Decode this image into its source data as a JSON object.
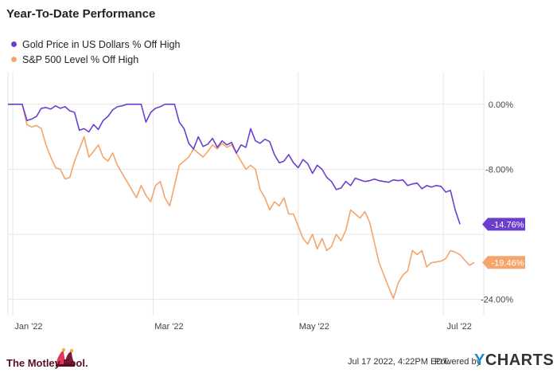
{
  "chart_data": {
    "type": "line",
    "title": "Year-To-Date Performance",
    "ylim": [
      -26,
      4
    ],
    "yticks": [
      {
        "value": 0,
        "label": "0.00%"
      },
      {
        "value": -8,
        "label": "-8.00%"
      },
      {
        "value": -24,
        "label": "-24.00%"
      }
    ],
    "xlim": [
      0,
      200
    ],
    "xticks": [
      {
        "value": 0,
        "label": "Jan '22"
      },
      {
        "value": 59,
        "label": "Mar '22"
      },
      {
        "value": 120,
        "label": "May '22"
      },
      {
        "value": 181,
        "label": "Jul '22"
      }
    ],
    "grid": true,
    "legend_position": "top-left",
    "series": [
      {
        "name": "Gold Price in US Dollars % Off High",
        "color": "#6a3fd0",
        "end_label": "-14.76%",
        "x": [
          0,
          2,
          4,
          6,
          8,
          10,
          12,
          14,
          16,
          18,
          20,
          22,
          24,
          26,
          28,
          30,
          32,
          34,
          36,
          38,
          40,
          42,
          44,
          46,
          48,
          50,
          52,
          54,
          56,
          58,
          60,
          62,
          64,
          66,
          68,
          70,
          72,
          74,
          76,
          78,
          80,
          82,
          84,
          86,
          88,
          90,
          92,
          94,
          96,
          98,
          100,
          102,
          104,
          106,
          108,
          110,
          112,
          114,
          116,
          118,
          120,
          122,
          124,
          126,
          128,
          130,
          132,
          134,
          136,
          138,
          140,
          142,
          144,
          146,
          148,
          150,
          152,
          154,
          156,
          158,
          160,
          162,
          164,
          166,
          168,
          170,
          172,
          174,
          176,
          178,
          180,
          182,
          184,
          186,
          188,
          190
        ],
        "y": [
          0,
          0,
          0,
          0,
          -2.0,
          -1.8,
          -1.5,
          -0.5,
          -0.4,
          -0.6,
          -0.2,
          -0.5,
          -0.3,
          -0.8,
          -1.0,
          -3.2,
          -3.0,
          -3.4,
          -2.5,
          -3.1,
          -2.0,
          -1.5,
          -0.7,
          -0.3,
          -0.2,
          0,
          0,
          0,
          0,
          -2.2,
          -1.0,
          -0.5,
          -0.3,
          0,
          0,
          0,
          -2.2,
          -3.0,
          -4.8,
          -5.5,
          -4.0,
          -5.2,
          -4.9,
          -4.2,
          -5.3,
          -4.5,
          -5.0,
          -4.7,
          -6.0,
          -5.0,
          -5.3,
          -3.0,
          -4.5,
          -4.8,
          -4.3,
          -4.6,
          -6.2,
          -7.2,
          -7.0,
          -6.2,
          -7.2,
          -7.8,
          -6.8,
          -7.3,
          -8.5,
          -7.5,
          -8.0,
          -9.0,
          -9.5,
          -10.5,
          -10.3,
          -9.5,
          -10.0,
          -9.1,
          -9.3,
          -9.5,
          -9.4,
          -9.2,
          -9.4,
          -9.5,
          -9.6,
          -9.3,
          -9.4,
          -9.3,
          -10.0,
          -9.8,
          -9.7,
          -10.4,
          -10.0,
          -10.2,
          -10.0,
          -10.1,
          -10.8,
          -10.6,
          -13.0,
          -14.76
        ]
      },
      {
        "name": "S&P 500 Level % Off High",
        "color": "#f5a46a",
        "end_label": "-19.46%",
        "x": [
          0,
          2,
          4,
          6,
          8,
          10,
          12,
          14,
          16,
          18,
          20,
          22,
          24,
          26,
          28,
          30,
          32,
          34,
          36,
          38,
          40,
          42,
          44,
          46,
          48,
          50,
          52,
          54,
          56,
          58,
          60,
          62,
          64,
          66,
          68,
          70,
          72,
          74,
          76,
          78,
          80,
          82,
          84,
          86,
          88,
          90,
          92,
          94,
          96,
          98,
          100,
          102,
          104,
          106,
          108,
          110,
          112,
          114,
          116,
          118,
          120,
          122,
          124,
          126,
          128,
          130,
          132,
          134,
          136,
          138,
          140,
          142,
          144,
          146,
          148,
          150,
          152,
          154,
          156,
          158,
          160,
          162,
          164,
          166,
          168,
          170,
          172,
          174,
          176,
          178,
          180,
          182,
          184,
          186,
          188,
          190,
          192,
          194,
          196
        ],
        "y": [
          0,
          0,
          0,
          0,
          -2.5,
          -2.8,
          -2.6,
          -3.0,
          -5.0,
          -6.5,
          -7.8,
          -8.0,
          -9.2,
          -9.0,
          -7.0,
          -5.5,
          -4.0,
          -6.5,
          -5.8,
          -5.0,
          -6.5,
          -7.0,
          -6.0,
          -7.5,
          -8.5,
          -9.5,
          -10.5,
          -11.5,
          -10.0,
          -11.2,
          -12.0,
          -10.0,
          -9.5,
          -11.5,
          -12.5,
          -10.0,
          -7.5,
          -7.0,
          -6.5,
          -5.5,
          -6.0,
          -6.5,
          -5.8,
          -5.0,
          -5.5,
          -4.8,
          -5.3,
          -5.0,
          -6.0,
          -7.0,
          -8.0,
          -7.5,
          -8.0,
          -10.5,
          -11.5,
          -13.0,
          -12.0,
          -12.5,
          -11.5,
          -13.5,
          -13.5,
          -15.0,
          -16.5,
          -17.2,
          -16.0,
          -17.8,
          -16.5,
          -18.0,
          -17.5,
          -16.0,
          -16.8,
          -15.5,
          -13.0,
          -13.5,
          -14.0,
          -13.2,
          -14.5,
          -17.0,
          -19.5,
          -21.0,
          -22.5,
          -23.9,
          -22.0,
          -21.0,
          -20.5,
          -18.0,
          -18.5,
          -18.0,
          -20.0,
          -19.5,
          -19.4,
          -19.3,
          -19.0,
          -18.0,
          -18.2,
          -18.5,
          -19.2,
          -19.8,
          -19.46
        ]
      }
    ]
  },
  "footer": {
    "timestamp": "Jul 17 2022, 4:22PM EDT.",
    "powered_by": "Powered by",
    "ycharts_y": "Y",
    "ycharts_rest": "CHARTS",
    "logo_text": "The Motley Fool."
  }
}
